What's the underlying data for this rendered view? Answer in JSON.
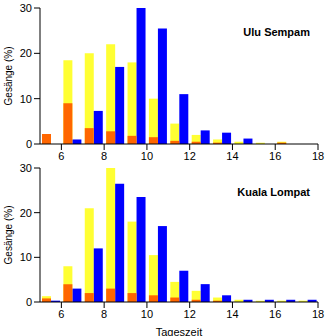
{
  "chart_data": [
    {
      "type": "bar",
      "title": "Ulu Sempam",
      "y_label": "Gesänge (%)",
      "x": [
        5.5,
        6.5,
        7.5,
        8.5,
        9.5,
        10.5,
        11.5,
        12.5,
        13.5,
        14.5,
        15.5,
        16.5
      ],
      "series": [
        {
          "color": "#ff6600",
          "values": [
            2.2,
            9,
            3.5,
            2.8,
            1.8,
            1.5,
            0.7,
            0.5,
            0.3,
            0,
            0,
            0.3
          ]
        },
        {
          "color": "#ffff33",
          "values": [
            2.2,
            18.5,
            20,
            22,
            18,
            10,
            4.5,
            2,
            1,
            0.5,
            0.3,
            0.5
          ]
        },
        {
          "color": "#0000ff",
          "values": [
            0,
            1,
            7.3,
            17,
            30,
            25.5,
            11,
            3,
            2.5,
            1.2,
            0,
            0
          ]
        }
      ],
      "xlim": [
        5,
        18
      ],
      "xticks": [
        6,
        8,
        10,
        12,
        14,
        16,
        18
      ],
      "ylim": [
        0,
        30
      ],
      "yticks": [
        0,
        10,
        20,
        30
      ]
    },
    {
      "type": "bar",
      "title": "Kuala Lompat",
      "y_label": "Gesänge (%)",
      "x_label": "Tageszeit",
      "x": [
        5.5,
        6.5,
        7.5,
        8.5,
        9.5,
        10.5,
        11.5,
        12.5,
        13.5,
        14.5,
        15.5,
        16.5,
        17.5
      ],
      "series": [
        {
          "color": "#ff6600",
          "values": [
            0.8,
            4,
            2,
            3,
            2,
            1.5,
            1,
            0.5,
            0.3,
            0,
            0,
            0,
            0
          ]
        },
        {
          "color": "#ffff33",
          "values": [
            1.3,
            8,
            21,
            30,
            18,
            10.5,
            4.5,
            2.5,
            1,
            0.5,
            0.3,
            0.3,
            0.3
          ]
        },
        {
          "color": "#0000ff",
          "values": [
            0.3,
            3,
            12,
            26.5,
            23.5,
            17,
            7,
            4,
            1.5,
            0.5,
            0.5,
            0.5,
            0.5
          ]
        }
      ],
      "xlim": [
        5,
        18
      ],
      "xticks": [
        6,
        8,
        10,
        12,
        14,
        16,
        18
      ],
      "ylim": [
        0,
        30
      ],
      "yticks": [
        0,
        10,
        20,
        30
      ]
    }
  ]
}
